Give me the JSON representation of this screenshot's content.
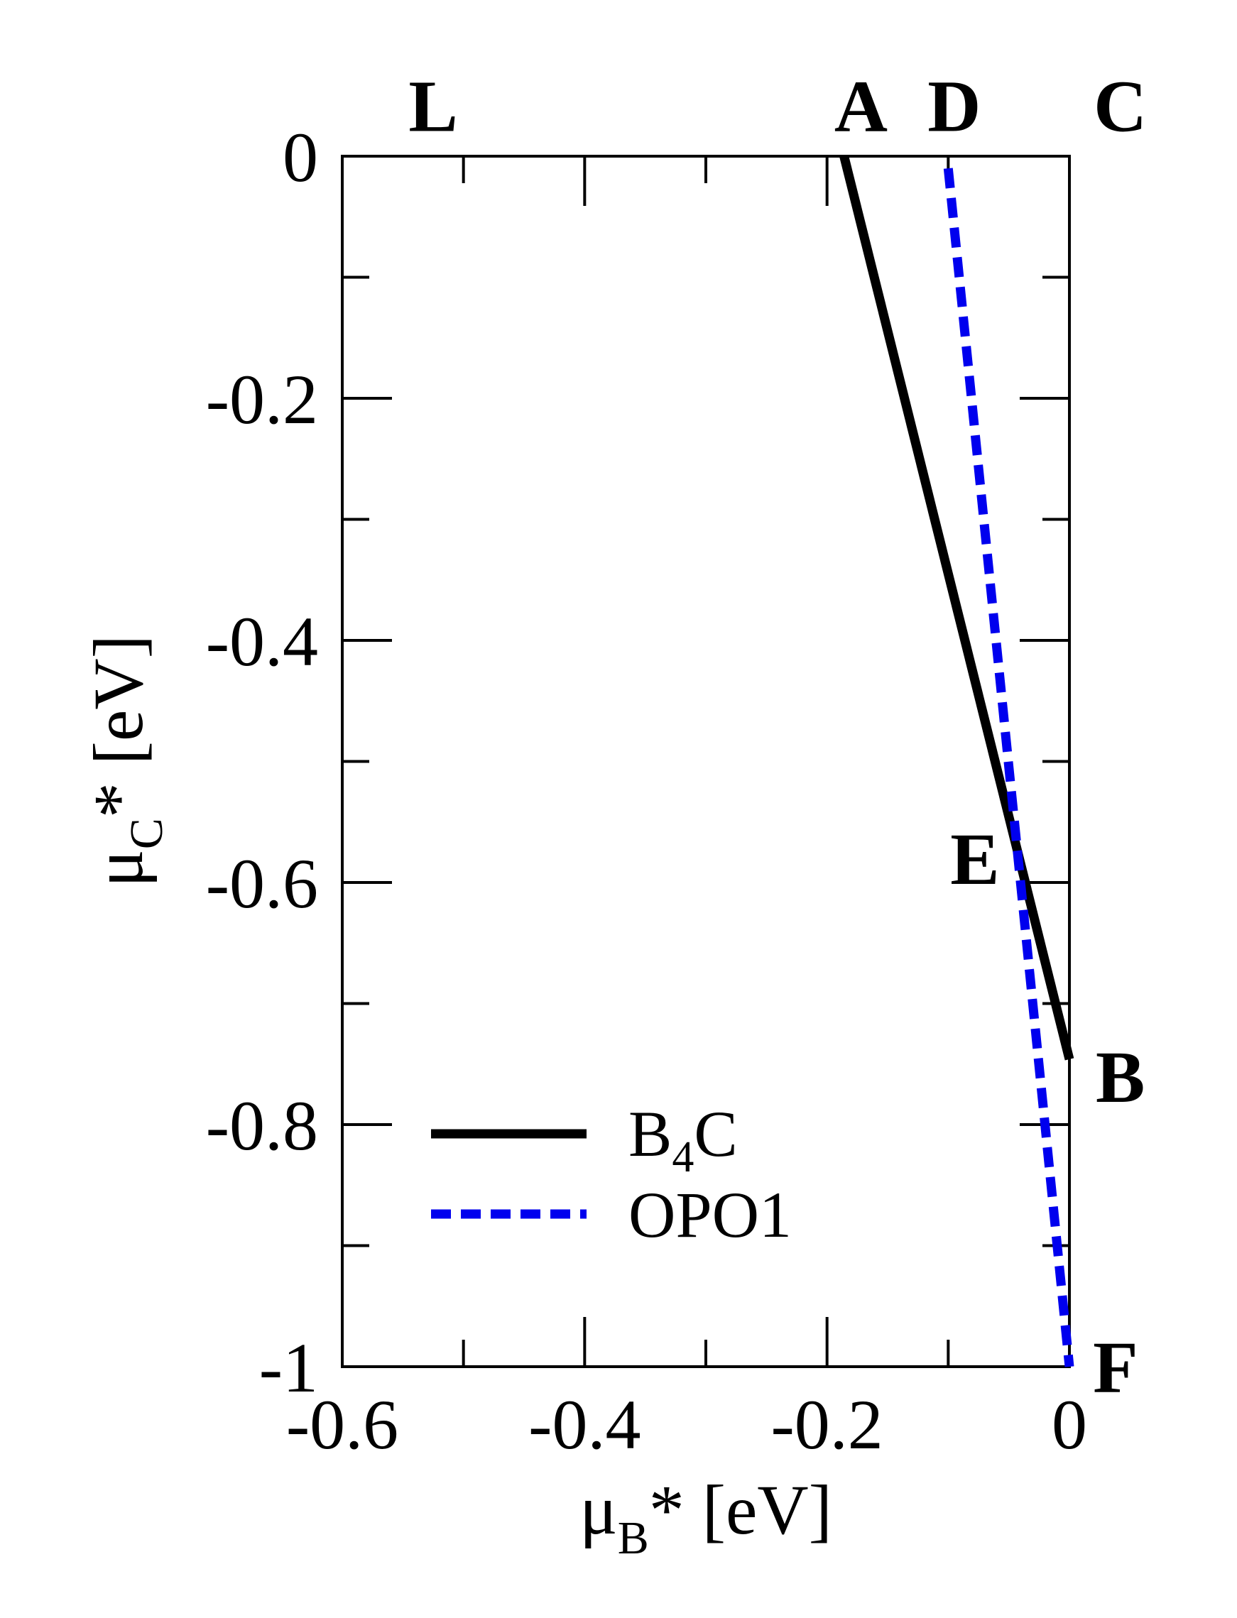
{
  "chart_data": {
    "type": "line",
    "title": "",
    "xlabel": {
      "base": "μ",
      "sub": "B",
      "rest": "* [eV]"
    },
    "ylabel": {
      "base": "μ",
      "sub": "C",
      "rest": "* [eV]"
    },
    "xlim": [
      -0.6,
      0
    ],
    "ylim": [
      -1,
      0
    ],
    "x_ticks": [
      -0.6,
      -0.4,
      -0.2,
      0
    ],
    "x_tick_labels": [
      "-0.6",
      "-0.4",
      "-0.2",
      "0"
    ],
    "x_minor_ticks": [
      -0.5,
      -0.3,
      -0.1
    ],
    "y_ticks": [
      0,
      -0.2,
      -0.4,
      -0.6,
      -0.8,
      -1
    ],
    "y_tick_labels": [
      "0",
      "-0.2",
      "-0.4",
      "-0.6",
      "-0.8",
      "-1"
    ],
    "y_minor_ticks": [
      -0.1,
      -0.3,
      -0.5,
      -0.7,
      -0.9
    ],
    "grid": false,
    "legend_position": "lower-left",
    "series": [
      {
        "name": "B4C",
        "legend": {
          "base": "B",
          "sub": "4",
          "rest": "C"
        },
        "style": "solid",
        "color": "#000000",
        "x": [
          -0.186,
          0
        ],
        "y": [
          0,
          -0.746
        ]
      },
      {
        "name": "OPO1",
        "legend": {
          "base": "OPO1",
          "sub": "",
          "rest": ""
        },
        "style": "dashed",
        "color": "#0000ee",
        "x": [
          -0.1,
          -0.041,
          0
        ],
        "y": [
          -0.01,
          -0.593,
          -1.0
        ]
      }
    ],
    "annotations": [
      {
        "text": "L",
        "x": -0.525,
        "y": 0.042
      },
      {
        "text": "A",
        "x": -0.172,
        "y": 0.042
      },
      {
        "text": "D",
        "x": -0.095,
        "y": 0.042
      },
      {
        "text": "C",
        "x": 0.042,
        "y": 0.042
      },
      {
        "text": "E",
        "x": -0.078,
        "y": -0.58
      },
      {
        "text": "B",
        "x": 0.042,
        "y": -0.76
      },
      {
        "text": "F",
        "x": 0.038,
        "y": -1.0
      }
    ]
  }
}
